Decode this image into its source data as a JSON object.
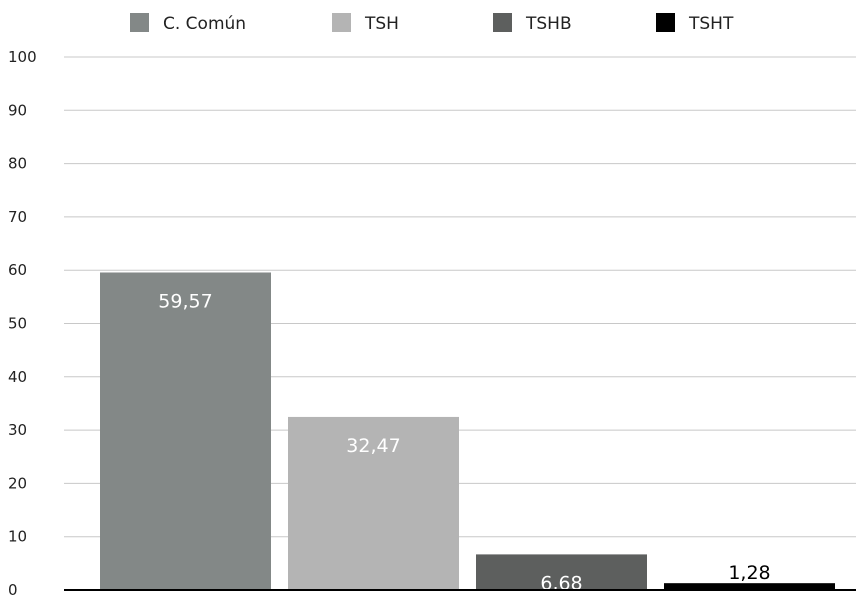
{
  "chart_data": {
    "type": "bar",
    "categories": [
      "C. Común",
      "TSH",
      "TSHB",
      "TSHT"
    ],
    "values": [
      59.57,
      32.47,
      6.68,
      1.28
    ],
    "value_labels": [
      "59,57",
      "32,47",
      "6,68",
      "1,28"
    ],
    "colors": [
      "#838887",
      "#b4b4b4",
      "#5d5f5e",
      "#000000"
    ],
    "value_label_colors": [
      "#ffffff",
      "#ffffff",
      "#ffffff",
      "#000000"
    ],
    "ylim": [
      0,
      100
    ],
    "yticks": [
      0,
      10,
      20,
      30,
      40,
      50,
      60,
      70,
      80,
      90,
      100
    ],
    "ytick_labels": [
      "0",
      "10",
      "20",
      "30",
      "40",
      "50",
      "60",
      "70",
      "80",
      "90",
      "100"
    ],
    "grid": true,
    "legend_position": "top",
    "title": "",
    "xlabel": "",
    "ylabel": ""
  }
}
